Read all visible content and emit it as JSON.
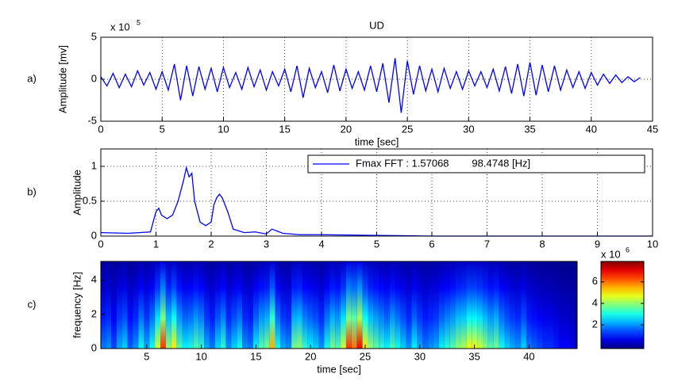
{
  "chart_data": [
    {
      "type": "line",
      "panel_label": "a)",
      "title": "UD",
      "ylabel": "Amplitude [mv]",
      "xlabel": "time [sec]",
      "y_multiplier": "x 10",
      "y_multiplier_exp": "5",
      "xlim": [
        0,
        45
      ],
      "xticks": [
        0,
        5,
        10,
        15,
        20,
        25,
        30,
        35,
        40,
        45
      ],
      "ylim": [
        -5,
        5
      ],
      "yticks": [
        -5,
        0,
        5
      ],
      "grid": true,
      "color": "#0000ff",
      "x": [
        0,
        0.5,
        1,
        1.5,
        2,
        2.5,
        3,
        3.5,
        4,
        4.5,
        5,
        5.5,
        6,
        6.5,
        7,
        7.5,
        8,
        8.5,
        9,
        9.5,
        10,
        10.5,
        11,
        11.5,
        12,
        12.5,
        13,
        13.5,
        14,
        14.5,
        15,
        15.5,
        16,
        16.5,
        17,
        17.5,
        18,
        18.5,
        19,
        19.5,
        20,
        20.5,
        21,
        21.5,
        22,
        22.5,
        23,
        23.5,
        24,
        24.5,
        25,
        25.5,
        26,
        26.5,
        27,
        27.5,
        28,
        28.5,
        29,
        29.5,
        30,
        30.5,
        31,
        31.5,
        32,
        32.5,
        33,
        33.5,
        34,
        34.5,
        35,
        35.5,
        36,
        36.5,
        37,
        37.5,
        38,
        38.5,
        39,
        39.5,
        40,
        40.5,
        41,
        41.5,
        42,
        42.5,
        43,
        43.5,
        44
      ],
      "values": [
        0.3,
        -0.8,
        0.7,
        -1,
        0.6,
        -0.9,
        1,
        -0.7,
        0.8,
        -1.2,
        0.9,
        -1.3,
        1.8,
        -2.5,
        1.6,
        -2,
        1.5,
        -1.2,
        1.3,
        -1.5,
        1.4,
        -1,
        0.8,
        -1.2,
        1.4,
        -0.9,
        1.1,
        -1.3,
        0.9,
        -0.8,
        1.2,
        -1.5,
        1.6,
        -2.2,
        1.3,
        -1,
        0.9,
        -1.6,
        1.7,
        -1.4,
        1.2,
        -1.1,
        0.9,
        -1.3,
        1.6,
        -1.5,
        1.9,
        -2.8,
        2.5,
        -4,
        2.2,
        -1.8,
        1.6,
        -1.4,
        1.2,
        -1.5,
        1.3,
        -1.1,
        0.9,
        -1.2,
        1,
        -0.8,
        0.9,
        -1,
        1.2,
        -1.4,
        1.5,
        -1.7,
        1.8,
        -2,
        2,
        -1.9,
        1.7,
        -1.5,
        1.6,
        -1.3,
        1.1,
        -1,
        0.9,
        -1.1,
        0.8,
        -0.7,
        0.6,
        -0.5,
        0.5,
        -0.4,
        0.3,
        -0.3,
        0.2
      ]
    },
    {
      "type": "line",
      "panel_label": "b)",
      "ylabel": "Amplitude",
      "xlim": [
        0,
        10
      ],
      "xticks": [
        0,
        1,
        2,
        3,
        4,
        5,
        6,
        7,
        8,
        9,
        10
      ],
      "ylim": [
        0,
        1.25
      ],
      "yticks": [
        0,
        0.5,
        1
      ],
      "grid": true,
      "legend": "top right",
      "x": [
        0,
        0.5,
        0.9,
        1.0,
        1.05,
        1.1,
        1.2,
        1.3,
        1.4,
        1.5,
        1.55,
        1.6,
        1.65,
        1.7,
        1.8,
        1.9,
        2.0,
        2.05,
        2.1,
        2.15,
        2.2,
        2.3,
        2.4,
        2.6,
        2.8,
        3.0,
        3.1,
        3.3,
        3.6,
        4,
        5,
        6,
        7,
        8,
        9,
        10
      ],
      "series": [
        {
          "name": "Fmax FFT : 1.57068        98.4748 [Hz]",
          "color": "#0000ff",
          "values": [
            0.05,
            0.04,
            0.06,
            0.35,
            0.4,
            0.3,
            0.25,
            0.3,
            0.5,
            0.8,
            0.98,
            0.85,
            0.9,
            0.5,
            0.2,
            0.15,
            0.2,
            0.45,
            0.55,
            0.6,
            0.55,
            0.35,
            0.1,
            0.05,
            0.06,
            0.03,
            0.1,
            0.04,
            0.02,
            0.02,
            0.01,
            0,
            0,
            0,
            0,
            0
          ]
        }
      ]
    },
    {
      "type": "heatmap",
      "panel_label": "c)",
      "ylabel": "frequency [Hz]",
      "xlabel": "time [sec]",
      "xlim": [
        0.8,
        44.4
      ],
      "xticks": [
        5,
        10,
        15,
        20,
        25,
        30,
        35,
        40
      ],
      "ylim": [
        0,
        5.1
      ],
      "yticks": [
        0,
        2,
        4
      ],
      "grid": false,
      "colormap": "jet",
      "clim": [
        -0.2,
        7.9
      ],
      "cticks": [
        2,
        4,
        6
      ],
      "c_multiplier": "x 10",
      "c_multiplier_exp": "6",
      "x": [
        0.5,
        1,
        1.5,
        2,
        2.5,
        3,
        3.5,
        4,
        4.5,
        5,
        5.5,
        6,
        6.5,
        7,
        7.5,
        8,
        8.5,
        9,
        9.5,
        10,
        10.5,
        11,
        11.5,
        12,
        12.5,
        13,
        13.5,
        14,
        14.5,
        15,
        15.5,
        16,
        16.5,
        17,
        17.5,
        18,
        18.5,
        19,
        19.5,
        20,
        20.5,
        21,
        21.5,
        22,
        22.5,
        23,
        23.5,
        24,
        24.5,
        25,
        25.5,
        26,
        26.5,
        27,
        27.5,
        28,
        28.5,
        29,
        29.5,
        30,
        30.5,
        31,
        31.5,
        32,
        32.5,
        33,
        33.5,
        34,
        34.5,
        35,
        35.5,
        36,
        36.5,
        37,
        37.5,
        38,
        38.5,
        39,
        39.5,
        40,
        40.5,
        41,
        41.5,
        42,
        42.5,
        43,
        43.5,
        44
      ],
      "values": [
        1.5,
        1.8,
        2,
        1.4,
        2.2,
        2.5,
        1.6,
        2,
        3,
        2.2,
        3,
        4.5,
        6.5,
        4,
        5,
        3.5,
        2.8,
        3,
        3.5,
        3.2,
        2.2,
        1.8,
        2.6,
        3.2,
        2,
        2.5,
        3,
        2,
        1.8,
        2.8,
        3.5,
        3.8,
        5.5,
        3,
        2.2,
        2,
        3.8,
        4,
        3.2,
        2.8,
        2.5,
        2,
        3,
        3.8,
        3.5,
        4.5,
        6.5,
        6,
        7,
        5,
        4,
        3.6,
        3.2,
        2.8,
        3.5,
        3,
        2.5,
        2,
        2.8,
        2.2,
        1.8,
        2,
        2.2,
        2.8,
        3.2,
        3.5,
        4,
        4.2,
        4.8,
        4.8,
        4.5,
        4,
        3.5,
        3.8,
        3,
        2.5,
        2.2,
        2,
        2.5,
        1.8,
        1.6,
        1.4,
        1.2,
        1.2,
        1,
        0.8,
        0.8,
        0.6
      ]
    }
  ]
}
